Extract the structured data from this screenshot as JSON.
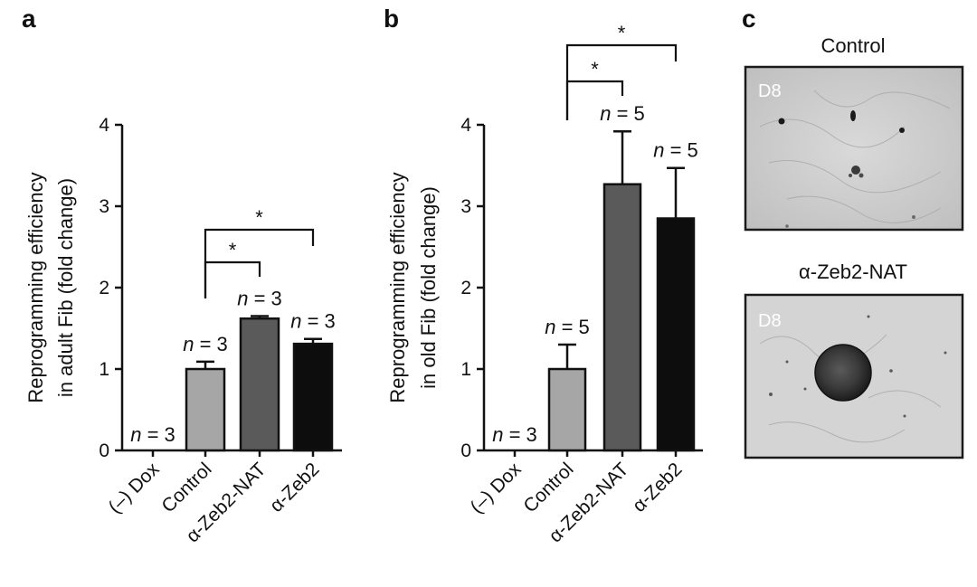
{
  "panels": {
    "a": {
      "letter": "a"
    },
    "b": {
      "letter": "b"
    },
    "c": {
      "letter": "c"
    }
  },
  "chart_data": [
    {
      "panel": "a",
      "type": "bar",
      "ylabel": [
        "Reprogramming efficiency",
        "in adult Fib (fold change)"
      ],
      "ylim": [
        0,
        4
      ],
      "yticks": [
        0,
        1,
        2,
        3,
        4
      ],
      "categories": [
        "(–) Dox",
        "Control",
        "α-Zeb2-NAT",
        "α-Zeb2"
      ],
      "values": [
        0,
        1.0,
        1.62,
        1.31
      ],
      "errors": [
        0,
        0.09,
        0.03,
        0.06
      ],
      "bar_colors": [
        "#ffffff",
        "#a6a6a6",
        "#5a5a5a",
        "#0d0d0d"
      ],
      "n_labels": [
        "n = 3",
        "n = 3",
        "n = 3",
        "n = 3"
      ],
      "significance": [
        {
          "from": 1,
          "to": 2,
          "label": "*"
        },
        {
          "from": 1,
          "to": 3,
          "label": "*"
        }
      ],
      "grid": false
    },
    {
      "panel": "b",
      "type": "bar",
      "ylabel": [
        "Reprogramming efficiency",
        "in old Fib (fold change)"
      ],
      "ylim": [
        0,
        4
      ],
      "yticks": [
        0,
        1,
        2,
        3,
        4
      ],
      "categories": [
        "(–) Dox",
        "Control",
        "α-Zeb2-NAT",
        "α-Zeb2"
      ],
      "values": [
        0,
        1.0,
        3.27,
        2.85
      ],
      "errors": [
        0,
        0.3,
        0.65,
        0.62
      ],
      "bar_colors": [
        "#ffffff",
        "#a6a6a6",
        "#5a5a5a",
        "#0d0d0d"
      ],
      "n_labels": [
        "n = 3",
        "n = 5",
        "n = 5",
        "n = 5"
      ],
      "significance": [
        {
          "from": 1,
          "to": 2,
          "label": "*"
        },
        {
          "from": 1,
          "to": 3,
          "label": "*"
        }
      ],
      "grid": false
    }
  ],
  "micrographs": [
    {
      "title": "Control",
      "day_label": "D8"
    },
    {
      "title": "α-Zeb2-NAT",
      "day_label": "D8"
    }
  ]
}
